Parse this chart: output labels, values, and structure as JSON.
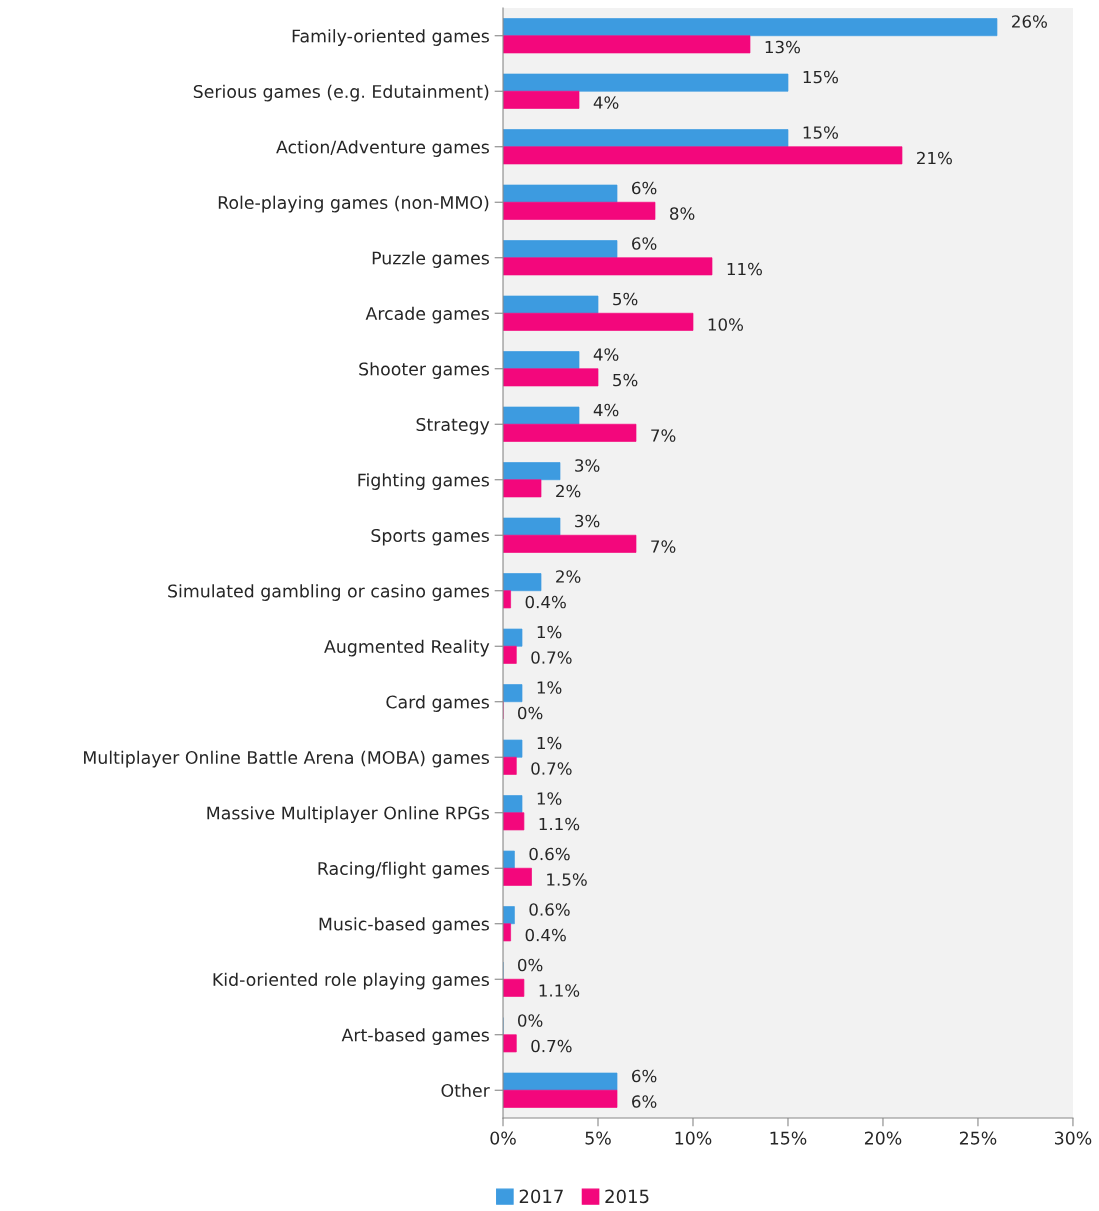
{
  "chart_data": {
    "type": "bar",
    "orientation": "horizontal",
    "categories": [
      "Family-oriented games",
      "Serious games (e.g. Edutainment)",
      "Action/Adventure games",
      "Role-playing games (non-MMO)",
      "Puzzle games",
      "Arcade games",
      "Shooter games",
      "Strategy",
      "Fighting games",
      "Sports games",
      "Simulated gambling or casino games",
      "Augmented Reality",
      "Card games",
      "Multiplayer Online Battle Arena (MOBA) games",
      "Massive Multiplayer Online RPGs",
      "Racing/flight games",
      "Music-based games",
      "Kid-oriented role playing games",
      "Art-based games",
      "Other"
    ],
    "series": [
      {
        "name": "2017",
        "color": "#3d9be0",
        "values": [
          26,
          15,
          15,
          6,
          6,
          5,
          4,
          4,
          3,
          3,
          2,
          1,
          1,
          1,
          1,
          0.6,
          0.6,
          0,
          0,
          6
        ],
        "value_labels": [
          "26%",
          "15%",
          "15%",
          "6%",
          "6%",
          "5%",
          "4%",
          "4%",
          "3%",
          "3%",
          "2%",
          "1%",
          "1%",
          "1%",
          "1%",
          "0.6%",
          "0.6%",
          "0%",
          "0%",
          "6%"
        ]
      },
      {
        "name": "2015",
        "color": "#f3077c",
        "values": [
          13,
          4,
          21,
          8,
          11,
          10,
          5,
          7,
          2,
          7,
          0.4,
          0.7,
          0,
          0.7,
          1.1,
          1.5,
          0.4,
          1.1,
          0.7,
          6
        ],
        "value_labels": [
          "13%",
          "4%",
          "21%",
          "8%",
          "11%",
          "10%",
          "5%",
          "7%",
          "2%",
          "7%",
          "0.4%",
          "0.7%",
          "0%",
          "0.7%",
          "1.1%",
          "1.5%",
          "0.4%",
          "1.1%",
          "0.7%",
          "6%"
        ]
      }
    ],
    "xlim": [
      0,
      30
    ],
    "xticks": [
      {
        "value": 0,
        "label": "0%"
      },
      {
        "value": 5,
        "label": "5%"
      },
      {
        "value": 10,
        "label": "10%"
      },
      {
        "value": 15,
        "label": "15%"
      },
      {
        "value": 20,
        "label": "20%"
      },
      {
        "value": 25,
        "label": "25%"
      },
      {
        "value": 30,
        "label": "30%"
      }
    ],
    "grid": false,
    "legend": "bottom left"
  }
}
